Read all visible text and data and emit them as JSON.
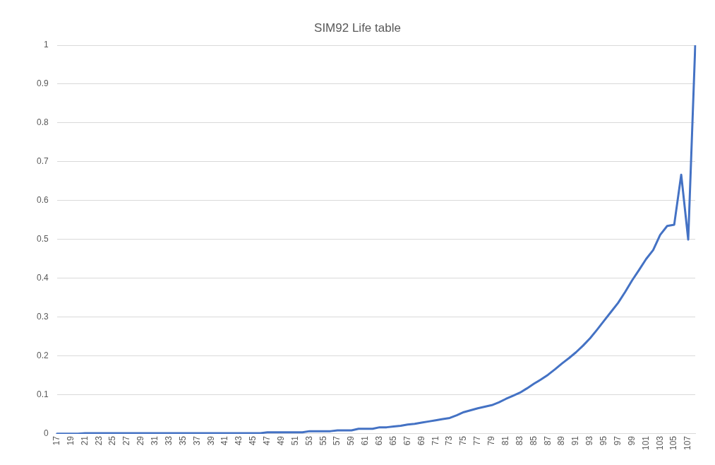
{
  "chart_data": {
    "type": "line",
    "title": "SIM92 Life table",
    "categories": [
      "17",
      null,
      "19",
      null,
      "21",
      null,
      "23",
      null,
      "25",
      null,
      "27",
      null,
      "29",
      null,
      "31",
      null,
      "33",
      null,
      "35",
      null,
      "37",
      null,
      "39",
      null,
      "41",
      null,
      "43",
      null,
      "45",
      null,
      "47",
      null,
      "49",
      null,
      "51",
      null,
      "53",
      null,
      "55",
      null,
      "57",
      null,
      "59",
      null,
      "61",
      null,
      "63",
      null,
      "65",
      null,
      "67",
      null,
      "69",
      null,
      "71",
      null,
      "73",
      null,
      "75",
      null,
      "77",
      null,
      "79",
      null,
      "81",
      null,
      "83",
      null,
      "85",
      null,
      "87",
      null,
      "89",
      null,
      "91",
      null,
      "93",
      null,
      "95",
      null,
      "97",
      null,
      "99",
      null,
      "101",
      null,
      "103",
      null,
      "105",
      null,
      "107",
      null
    ],
    "series": [
      {
        "color": "#4472c4",
        "values": [
          0.0005,
          0.0005,
          0.0005,
          0.0005,
          0.002,
          0.002,
          0.002,
          0.002,
          0.002,
          0.002,
          0.002,
          0.002,
          0.002,
          0.002,
          0.002,
          0.002,
          0.002,
          0.002,
          0.002,
          0.002,
          0.002,
          0.002,
          0.002,
          0.002,
          0.002,
          0.002,
          0.002,
          0.002,
          0.002,
          0.002,
          0.004,
          0.004,
          0.004,
          0.004,
          0.004,
          0.004,
          0.007,
          0.007,
          0.007,
          0.007,
          0.009,
          0.009,
          0.009,
          0.013,
          0.013,
          0.013,
          0.017,
          0.017,
          0.019,
          0.021,
          0.024,
          0.026,
          0.029,
          0.032,
          0.035,
          0.038,
          0.041,
          0.048,
          0.056,
          0.061,
          0.066,
          0.07,
          0.074,
          0.081,
          0.09,
          0.098,
          0.106,
          0.117,
          0.129,
          0.14,
          0.152,
          0.166,
          0.181,
          0.195,
          0.21,
          0.227,
          0.246,
          0.268,
          0.291,
          0.314,
          0.337,
          0.365,
          0.395,
          0.422,
          0.45,
          0.473,
          0.512,
          0.535,
          0.538,
          0.667,
          0.5,
          1
        ]
      }
    ],
    "ylim": [
      0,
      1
    ],
    "yticks": [
      0,
      0.1,
      0.2,
      0.3,
      0.4,
      0.5,
      0.6,
      0.7,
      0.8,
      0.9,
      1
    ],
    "grid": "y",
    "legend": false,
    "marker": "none",
    "line_style": "solid"
  }
}
